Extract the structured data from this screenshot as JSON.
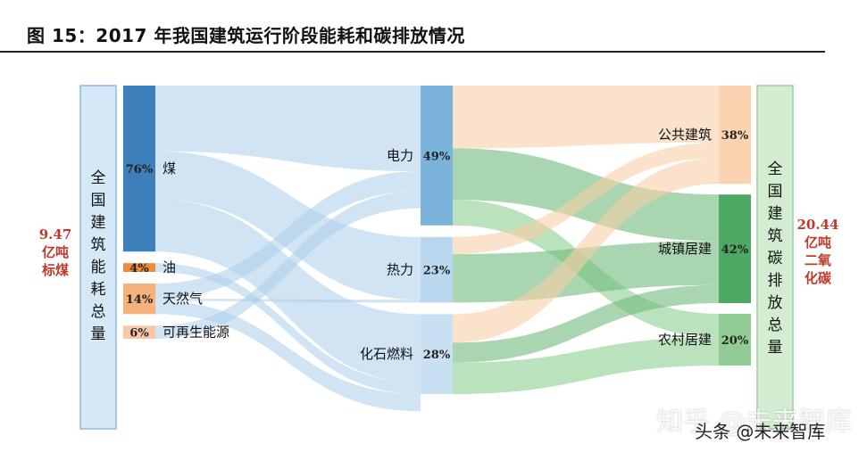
{
  "title": "图 15：2017 年我国建筑运行阶段能耗和碳排放情况",
  "left_total": {
    "label": "全国建筑能耗总量",
    "value_lines": [
      "9.47",
      "亿吨",
      "标煤"
    ]
  },
  "right_total": {
    "label": "全国建筑碳排放总量",
    "value_lines": [
      "20.44",
      "亿吨",
      "二氧",
      "化碳"
    ]
  },
  "chart_data": {
    "type": "sankey",
    "title": "图 15：2017 年我国建筑运行阶段能耗和碳排放情况",
    "sources": [
      {
        "name": "煤",
        "pct_label": "76%",
        "value": 76,
        "color": "#3d7fba"
      },
      {
        "name": "油",
        "pct_label": "4%",
        "value": 4,
        "color": "#f08a3c"
      },
      {
        "name": "天然气",
        "pct_label": "14%",
        "value": 14,
        "color": "#f6b27c"
      },
      {
        "name": "可再生能源",
        "pct_label": "6%",
        "value": 6,
        "color": "#f8c9a4"
      }
    ],
    "carriers": [
      {
        "name": "电力",
        "pct_label": "49%",
        "value": 49,
        "color": "#7ab3dc"
      },
      {
        "name": "热力",
        "pct_label": "23%",
        "value": 23,
        "color": "#b9d8ef"
      },
      {
        "name": "化石燃料",
        "pct_label": "28%",
        "value": 28,
        "color": "#c9e0f2"
      }
    ],
    "sectors": [
      {
        "name": "公共建筑",
        "pct_label": "38%",
        "value": 38,
        "color": "#fbd3b0"
      },
      {
        "name": "城镇居建",
        "pct_label": "42%",
        "value": 42,
        "color": "#4ca863"
      },
      {
        "name": "农村居建",
        "pct_label": "20%",
        "value": 20,
        "color": "#92cc95"
      }
    ]
  },
  "watermark": {
    "line1": "知乎 @未来智库",
    "line2": "头条 @未来智库"
  }
}
